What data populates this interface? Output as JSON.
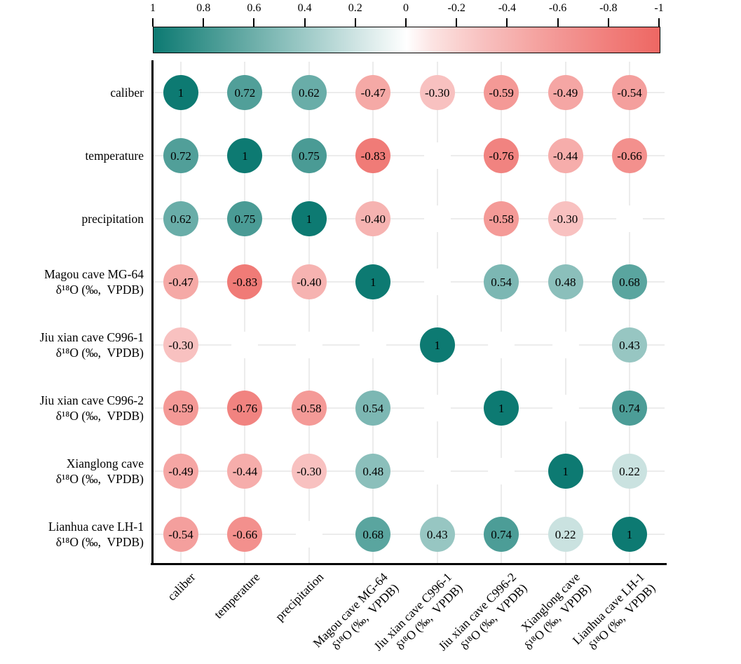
{
  "colorbar": {
    "tick_labels": [
      "1",
      "0.8",
      "0.6",
      "0.4",
      "0.2",
      "0",
      "-0.2",
      "-0.4",
      "-0.6",
      "-0.8",
      "-1"
    ],
    "domain_max": 1,
    "domain_min": -1,
    "positive_color": "#0d7a72",
    "zero_color": "#ffffff",
    "negative_color": "#ee6763"
  },
  "chart_data": {
    "type": "heatmap",
    "subtype": "correlation-bubble-matrix",
    "title": "",
    "legend_position": "top-colorbar",
    "grid": true,
    "variables": [
      {
        "name": "caliber",
        "lines": [
          "caliber"
        ]
      },
      {
        "name": "temperature",
        "lines": [
          "temperature"
        ]
      },
      {
        "name": "precipitation",
        "lines": [
          "precipitation"
        ]
      },
      {
        "name": "Magou cave MG-64 δ¹⁸O (‰, VPDB)",
        "lines": [
          "Magou cave MG-64",
          "δ¹⁸O (‰,  VPDB)"
        ]
      },
      {
        "name": "Jiu xian cave C996-1 δ¹⁸O (‰, VPDB)",
        "lines": [
          "Jiu xian cave C996-1",
          "δ¹⁸O (‰,  VPDB)"
        ]
      },
      {
        "name": "Jiu xian cave C996-2 δ¹⁸O (‰, VPDB)",
        "lines": [
          "Jiu xian cave C996-2",
          "δ¹⁸O (‰,  VPDB)"
        ]
      },
      {
        "name": "Xianglong cave δ¹⁸O (‰, VPDB)",
        "lines": [
          "Xianglong cave",
          "δ¹⁸O (‰,  VPDB)"
        ]
      },
      {
        "name": "Lianhua cave LH-1 δ¹⁸O (‰, VPDB)",
        "lines": [
          "Lianhua cave LH-1",
          "δ¹⁸O (‰,  VPDB)"
        ]
      }
    ],
    "matrix": [
      [
        1,
        0.72,
        0.62,
        -0.47,
        -0.3,
        -0.59,
        -0.49,
        -0.54
      ],
      [
        0.72,
        1,
        0.75,
        -0.83,
        null,
        -0.76,
        -0.44,
        -0.66
      ],
      [
        0.62,
        0.75,
        1,
        -0.4,
        null,
        -0.58,
        -0.3,
        null
      ],
      [
        -0.47,
        -0.83,
        -0.4,
        1,
        null,
        0.54,
        0.48,
        0.68
      ],
      [
        -0.3,
        null,
        null,
        null,
        1,
        null,
        null,
        0.43
      ],
      [
        -0.59,
        -0.76,
        -0.58,
        0.54,
        null,
        1,
        null,
        0.74
      ],
      [
        -0.49,
        -0.44,
        -0.3,
        0.48,
        null,
        null,
        1,
        0.22
      ],
      [
        -0.54,
        -0.66,
        null,
        0.68,
        0.43,
        0.74,
        0.22,
        1
      ]
    ],
    "value_format": "two_decimals_integers_plain",
    "blank_cell_meaning": "not significant (shown as small white circle)"
  }
}
